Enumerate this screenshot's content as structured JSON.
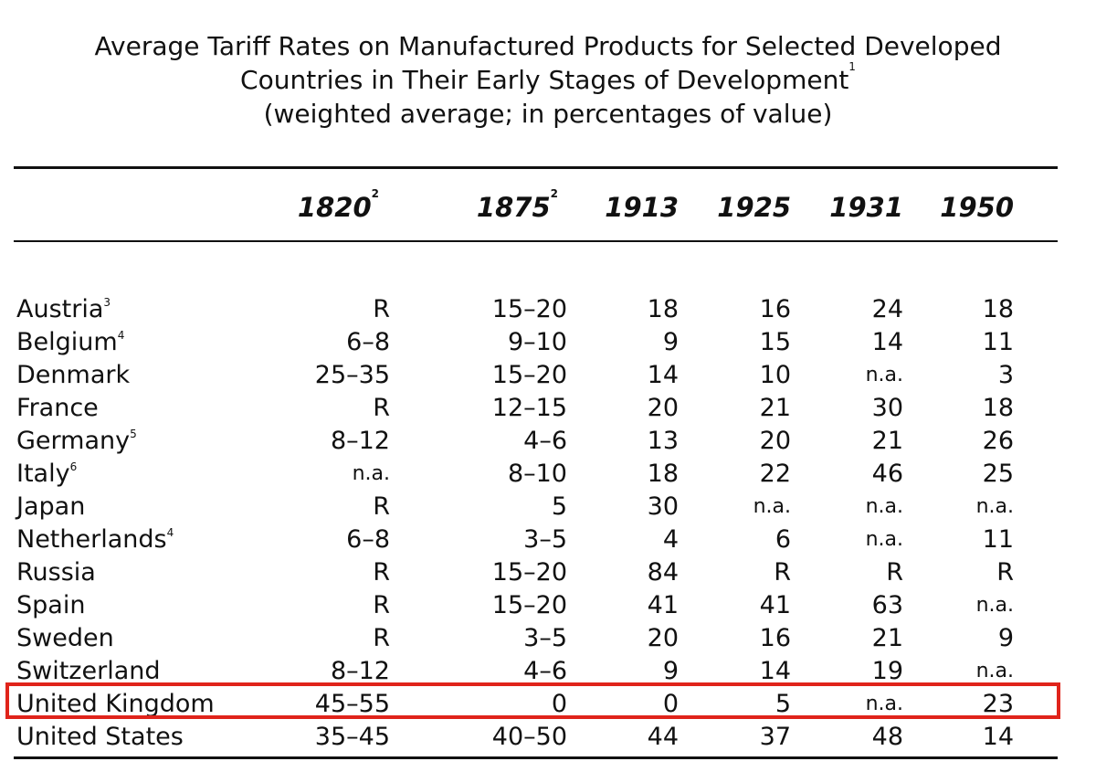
{
  "title": {
    "line1": "Average Tariff Rates on Manufactured Products for Selected Developed",
    "line2": "Countries in Their Early Stages of Development",
    "line2_fn": "1",
    "line3": "(weighted average; in percentages of value)"
  },
  "years": [
    {
      "label": "1820",
      "fn": "2"
    },
    {
      "label": "1875",
      "fn": "2"
    },
    {
      "label": "1913",
      "fn": ""
    },
    {
      "label": "1925",
      "fn": ""
    },
    {
      "label": "1931",
      "fn": ""
    },
    {
      "label": "1950",
      "fn": ""
    }
  ],
  "rows": [
    {
      "country": "Austria",
      "fn": "3",
      "v": [
        "R",
        "15–20",
        "18",
        "16",
        "24",
        "18"
      ]
    },
    {
      "country": "Belgium",
      "fn": "4",
      "v": [
        "6–8",
        "9–10",
        "9",
        "15",
        "14",
        "11"
      ]
    },
    {
      "country": "Denmark",
      "fn": "",
      "v": [
        "25–35",
        "15–20",
        "14",
        "10",
        "n.a.",
        "3"
      ]
    },
    {
      "country": "France",
      "fn": "",
      "v": [
        "R",
        "12–15",
        "20",
        "21",
        "30",
        "18"
      ]
    },
    {
      "country": "Germany",
      "fn": "5",
      "v": [
        "8–12",
        "4–6",
        "13",
        "20",
        "21",
        "26"
      ]
    },
    {
      "country": "Italy",
      "fn": "6",
      "v": [
        "n.a.",
        "8–10",
        "18",
        "22",
        "46",
        "25"
      ]
    },
    {
      "country": "Japan",
      "fn": "",
      "v": [
        "R",
        "5",
        "30",
        "n.a.",
        "n.a.",
        "n.a."
      ]
    },
    {
      "country": "Netherlands",
      "fn": "4",
      "v": [
        "6–8",
        "3–5",
        "4",
        "6",
        "n.a.",
        "11"
      ]
    },
    {
      "country": "Russia",
      "fn": "",
      "v": [
        "R",
        "15–20",
        "84",
        "R",
        "R",
        "R"
      ]
    },
    {
      "country": "Spain",
      "fn": "",
      "v": [
        "R",
        "15–20",
        "41",
        "41",
        "63",
        "n.a."
      ]
    },
    {
      "country": "Sweden",
      "fn": "",
      "v": [
        "R",
        "3–5",
        "20",
        "16",
        "21",
        "9"
      ]
    },
    {
      "country": "Switzerland",
      "fn": "",
      "v": [
        "8–12",
        "4–6",
        "9",
        "14",
        "19",
        "n.a."
      ]
    },
    {
      "country": "United Kingdom",
      "fn": "",
      "v": [
        "45–55",
        "0",
        "0",
        "5",
        "n.a.",
        "23"
      ]
    },
    {
      "country": "United States",
      "fn": "",
      "v": [
        "35–45",
        "40–50",
        "44",
        "37",
        "48",
        "14"
      ]
    }
  ],
  "highlight_color": "#e0241b"
}
